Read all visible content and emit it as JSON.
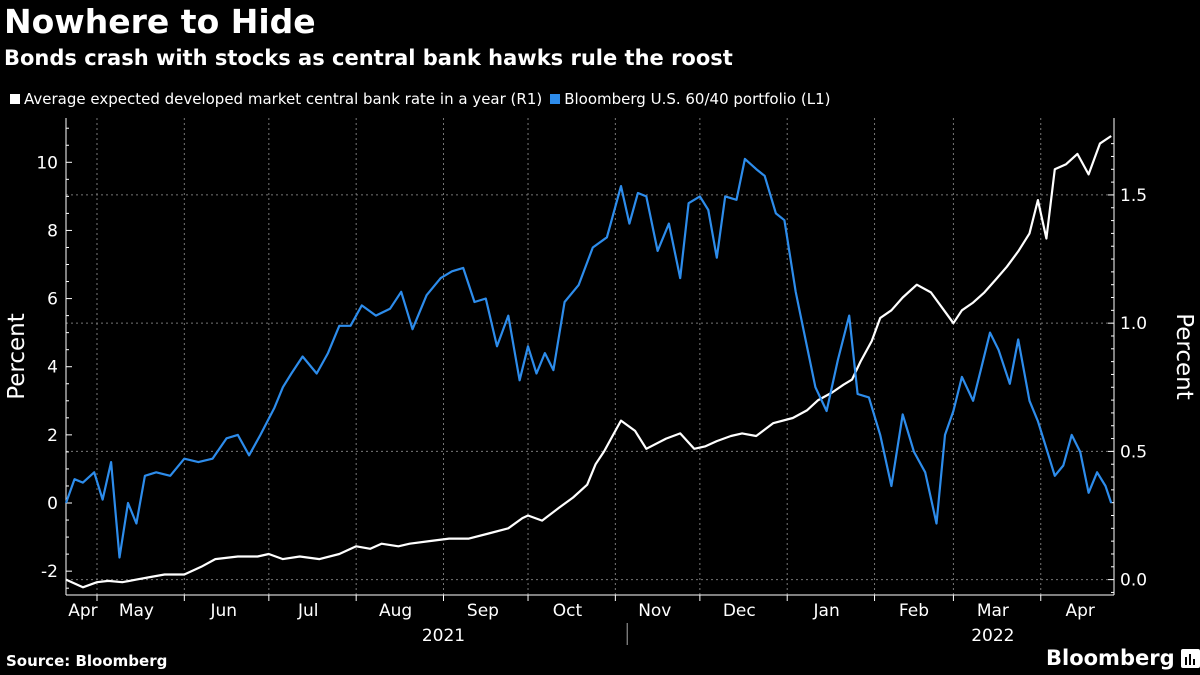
{
  "chart_data": {
    "type": "line",
    "title": "Nowhere to Hide",
    "subtitle": "Bonds crash with stocks as central bank hawks rule the roost",
    "left_axis": {
      "label": "Percent",
      "ylim": [
        -2.7,
        11.3
      ],
      "ticks": [
        -2,
        0,
        2,
        4,
        6,
        8,
        10
      ],
      "tick_labels": [
        "-2",
        "0",
        "2",
        "4",
        "6",
        "8",
        "10"
      ]
    },
    "right_axis": {
      "label": "Percent",
      "ylim": [
        -0.06,
        1.8
      ],
      "ticks": [
        0.0,
        0.5,
        1.0,
        1.5
      ],
      "tick_labels": [
        "0.0",
        "0.5",
        "1.0",
        "1.5"
      ]
    },
    "x_range": [
      "2021-04-20",
      "2022-04-27"
    ],
    "x_tick_labels": [
      "Apr",
      "May",
      "Jun",
      "Jul",
      "Aug",
      "Sep",
      "Oct",
      "Nov",
      "Dec",
      "Jan",
      "Feb",
      "Mar",
      "Apr"
    ],
    "x_tick_dates": [
      "2021-04-26",
      "2021-05-15",
      "2021-06-15",
      "2021-07-15",
      "2021-08-15",
      "2021-09-15",
      "2021-10-15",
      "2021-11-15",
      "2021-12-15",
      "2022-01-15",
      "2022-02-15",
      "2022-03-15",
      "2022-04-15"
    ],
    "x_grid_dates": [
      "2021-05-01",
      "2021-06-01",
      "2021-07-01",
      "2021-08-01",
      "2021-09-01",
      "2021-10-01",
      "2021-11-01",
      "2021-12-01",
      "2022-01-01",
      "2022-02-01",
      "2022-03-01",
      "2022-04-01"
    ],
    "year_labels": [
      "2021",
      "2022"
    ],
    "year_label_dates": [
      "2021-09-01",
      "2022-03-15"
    ],
    "year_divider_date": "2022-01-01",
    "series": [
      {
        "name": "Average expected developed market central bank rate in a year (R1)",
        "axis": "right",
        "color": "#ffffff",
        "x": [
          "2021-04-20",
          "2021-04-26",
          "2021-05-01",
          "2021-05-05",
          "2021-05-10",
          "2021-05-15",
          "2021-05-20",
          "2021-05-25",
          "2021-06-01",
          "2021-06-07",
          "2021-06-12",
          "2021-06-20",
          "2021-06-27",
          "2021-07-01",
          "2021-07-06",
          "2021-07-12",
          "2021-07-19",
          "2021-07-26",
          "2021-08-01",
          "2021-08-06",
          "2021-08-10",
          "2021-08-16",
          "2021-08-20",
          "2021-08-27",
          "2021-09-03",
          "2021-09-10",
          "2021-09-17",
          "2021-09-24",
          "2021-09-29",
          "2021-10-01",
          "2021-10-06",
          "2021-10-12",
          "2021-10-17",
          "2021-10-22",
          "2021-10-25",
          "2021-10-28",
          "2021-10-31",
          "2021-11-03",
          "2021-11-08",
          "2021-11-12",
          "2021-11-19",
          "2021-11-24",
          "2021-11-29",
          "2021-12-03",
          "2021-12-07",
          "2021-12-12",
          "2021-12-16",
          "2021-12-21",
          "2021-12-27",
          "2022-01-03",
          "2022-01-08",
          "2022-01-12",
          "2022-01-17",
          "2022-01-21",
          "2022-01-24",
          "2022-01-27",
          "2022-01-31",
          "2022-02-03",
          "2022-02-07",
          "2022-02-11",
          "2022-02-16",
          "2022-02-21",
          "2022-02-25",
          "2022-03-01",
          "2022-03-04",
          "2022-03-08",
          "2022-03-12",
          "2022-03-16",
          "2022-03-20",
          "2022-03-24",
          "2022-03-28",
          "2022-03-31",
          "2022-04-03",
          "2022-04-06",
          "2022-04-10",
          "2022-04-14",
          "2022-04-18",
          "2022-04-22",
          "2022-04-26"
        ],
        "values": [
          0.0,
          -0.03,
          -0.01,
          -0.005,
          -0.01,
          0.0,
          0.01,
          0.02,
          0.02,
          0.05,
          0.08,
          0.09,
          0.09,
          0.1,
          0.08,
          0.09,
          0.08,
          0.1,
          0.13,
          0.12,
          0.14,
          0.13,
          0.14,
          0.15,
          0.16,
          0.16,
          0.18,
          0.2,
          0.24,
          0.25,
          0.23,
          0.28,
          0.32,
          0.37,
          0.45,
          0.5,
          0.56,
          0.62,
          0.58,
          0.51,
          0.55,
          0.57,
          0.51,
          0.52,
          0.54,
          0.56,
          0.57,
          0.56,
          0.61,
          0.63,
          0.66,
          0.7,
          0.73,
          0.76,
          0.78,
          0.85,
          0.93,
          1.02,
          1.05,
          1.1,
          1.15,
          1.12,
          1.06,
          1.0,
          1.05,
          1.08,
          1.12,
          1.17,
          1.22,
          1.28,
          1.35,
          1.48,
          1.33,
          1.6,
          1.62,
          1.66,
          1.58,
          1.7,
          1.73
        ]
      },
      {
        "name": "Bloomberg U.S. 60/40 portfolio (L1)",
        "axis": "left",
        "color": "#2d8ceb",
        "x": [
          "2021-04-20",
          "2021-04-23",
          "2021-04-26",
          "2021-04-30",
          "2021-05-03",
          "2021-05-06",
          "2021-05-09",
          "2021-05-12",
          "2021-05-15",
          "2021-05-18",
          "2021-05-22",
          "2021-05-27",
          "2021-06-01",
          "2021-06-06",
          "2021-06-11",
          "2021-06-16",
          "2021-06-20",
          "2021-06-24",
          "2021-06-28",
          "2021-07-03",
          "2021-07-06",
          "2021-07-09",
          "2021-07-13",
          "2021-07-18",
          "2021-07-22",
          "2021-07-26",
          "2021-07-30",
          "2021-08-03",
          "2021-08-08",
          "2021-08-13",
          "2021-08-17",
          "2021-08-21",
          "2021-08-26",
          "2021-08-31",
          "2021-09-04",
          "2021-09-08",
          "2021-09-12",
          "2021-09-16",
          "2021-09-20",
          "2021-09-24",
          "2021-09-28",
          "2021-10-01",
          "2021-10-04",
          "2021-10-07",
          "2021-10-10",
          "2021-10-14",
          "2021-10-19",
          "2021-10-24",
          "2021-10-29",
          "2021-11-03",
          "2021-11-06",
          "2021-11-09",
          "2021-11-12",
          "2021-11-16",
          "2021-11-20",
          "2021-11-24",
          "2021-11-27",
          "2021-12-01",
          "2021-12-04",
          "2021-12-07",
          "2021-12-10",
          "2021-12-14",
          "2021-12-17",
          "2021-12-21",
          "2021-12-24",
          "2021-12-28",
          "2021-12-31",
          "2022-01-04",
          "2022-01-07",
          "2022-01-11",
          "2022-01-15",
          "2022-01-19",
          "2022-01-23",
          "2022-01-26",
          "2022-01-30",
          "2022-02-03",
          "2022-02-07",
          "2022-02-11",
          "2022-02-15",
          "2022-02-19",
          "2022-02-23",
          "2022-02-26",
          "2022-03-01",
          "2022-03-04",
          "2022-03-08",
          "2022-03-11",
          "2022-03-14",
          "2022-03-17",
          "2022-03-21",
          "2022-03-24",
          "2022-03-28",
          "2022-03-31",
          "2022-04-03",
          "2022-04-06",
          "2022-04-09",
          "2022-04-12",
          "2022-04-15",
          "2022-04-18",
          "2022-04-21",
          "2022-04-24",
          "2022-04-26"
        ],
        "values": [
          0.0,
          0.7,
          0.6,
          0.9,
          0.1,
          1.2,
          -1.6,
          0.0,
          -0.6,
          0.8,
          0.9,
          0.8,
          1.3,
          1.2,
          1.3,
          1.9,
          2.0,
          1.4,
          2.0,
          2.8,
          3.4,
          3.8,
          4.3,
          3.8,
          4.4,
          5.2,
          5.2,
          5.8,
          5.5,
          5.7,
          6.2,
          5.1,
          6.1,
          6.6,
          6.8,
          6.9,
          5.9,
          6.0,
          4.6,
          5.5,
          3.6,
          4.6,
          3.8,
          4.4,
          3.9,
          5.9,
          6.4,
          7.5,
          7.8,
          9.3,
          8.2,
          9.1,
          9.0,
          7.4,
          8.2,
          6.6,
          8.8,
          9.0,
          8.6,
          7.2,
          9.0,
          8.9,
          10.1,
          9.8,
          9.6,
          8.5,
          8.3,
          6.2,
          5.0,
          3.4,
          2.7,
          4.2,
          5.5,
          3.2,
          3.1,
          2.0,
          0.5,
          2.6,
          1.5,
          0.9,
          -0.6,
          2.0,
          2.7,
          3.7,
          3.0,
          4.0,
          5.0,
          4.5,
          3.5,
          4.8,
          3.0,
          2.4,
          1.6,
          0.8,
          1.1,
          2.0,
          1.5,
          0.3,
          0.9,
          0.5,
          0.0
        ]
      }
    ],
    "grid": true
  },
  "legend": {
    "items": [
      {
        "label": "Average expected developed market central bank rate in a year (R1)",
        "color": "#ffffff"
      },
      {
        "label": "Bloomberg U.S. 60/40 portfolio (L1)",
        "color": "#2d8ceb"
      }
    ]
  },
  "footer": {
    "source": "Source: Bloomberg",
    "brand": "Bloomberg"
  }
}
